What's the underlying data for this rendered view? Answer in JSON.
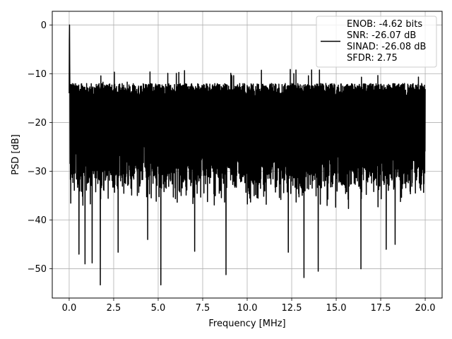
{
  "chart_data": {
    "type": "line",
    "xlabel": "Frequency [MHz]",
    "ylabel": "PSD [dB]",
    "xlim": [
      -0.95,
      20.95
    ],
    "ylim": [
      -56,
      2.8
    ],
    "xticks": [
      0.0,
      2.5,
      5.0,
      7.5,
      10.0,
      12.5,
      15.0,
      17.5,
      20.0
    ],
    "xtick_labels": [
      "0.0",
      "2.5",
      "5.0",
      "7.5",
      "10.0",
      "12.5",
      "15.0",
      "17.5",
      "20.0"
    ],
    "yticks": [
      0,
      -10,
      -20,
      -30,
      -40,
      -50
    ],
    "ytick_labels": [
      "0",
      "−10",
      "−20",
      "−30",
      "−40",
      "−50"
    ],
    "grid": true,
    "legend_position": "top-right",
    "legend_lines": [
      "ENOB: -4.62 bits",
      "SNR: -26.07 dB",
      "SINAD: -26.08 dB",
      "SFDR: 2.75"
    ],
    "line_color": "#000000",
    "series": [
      {
        "x_range": [
          0,
          20
        ],
        "points": 2001,
        "peak": {
          "x": 0.02,
          "y": 0
        },
        "envelope": {
          "upper_approx": -8,
          "lower_typical": -38,
          "mean_approx": -21
        },
        "notable_minima": [
          {
            "x": 1.75,
            "y": -53.3
          },
          {
            "x": 5.15,
            "y": -53.3
          },
          {
            "x": 13.2,
            "y": -51.8
          },
          {
            "x": 8.8,
            "y": -51.2
          },
          {
            "x": 14.0,
            "y": -50.5
          },
          {
            "x": 16.4,
            "y": -50.0
          },
          {
            "x": 0.9,
            "y": -49.0
          },
          {
            "x": 1.3,
            "y": -48.8
          },
          {
            "x": 0.55,
            "y": -47.0
          },
          {
            "x": 12.3,
            "y": -46.6
          },
          {
            "x": 7.05,
            "y": -46.4
          },
          {
            "x": 17.8,
            "y": -46.0
          },
          {
            "x": 2.75,
            "y": -46.6
          },
          {
            "x": 18.3,
            "y": -45.0
          },
          {
            "x": 4.4,
            "y": -44.0
          }
        ]
      }
    ]
  }
}
